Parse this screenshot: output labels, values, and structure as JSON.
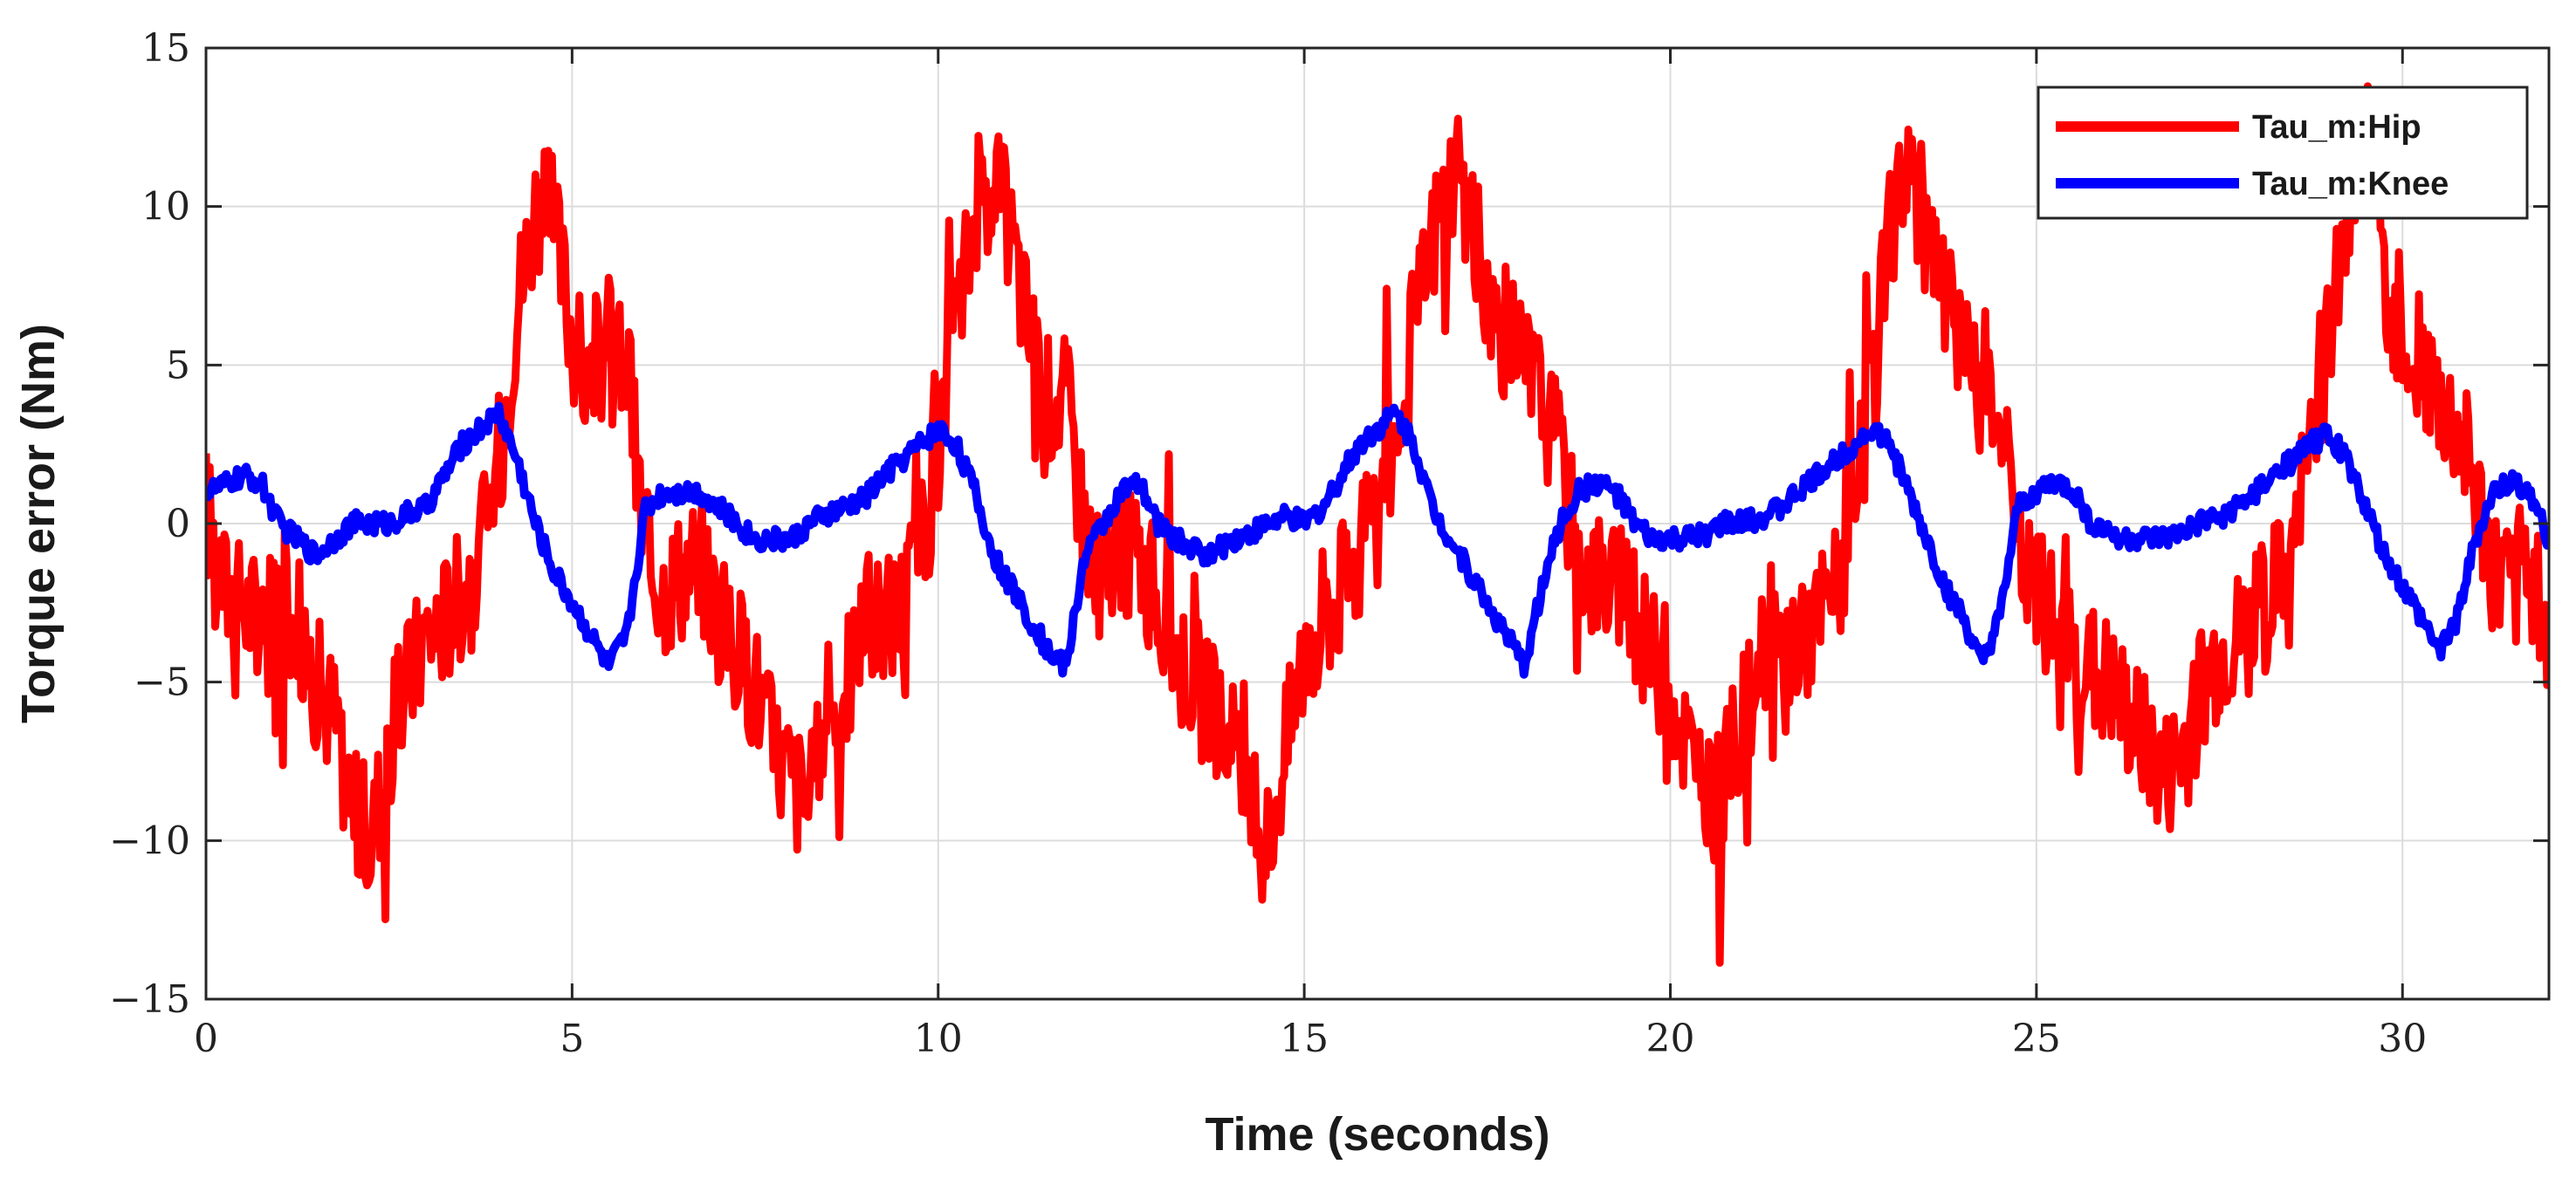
{
  "chart_data": {
    "type": "line",
    "title": "",
    "xlabel": "Time (seconds)",
    "ylabel": "Torque error (Nm)",
    "xlim": [
      0,
      32
    ],
    "ylim": [
      -15,
      15
    ],
    "xticks": [
      0,
      5,
      10,
      15,
      20,
      25,
      30
    ],
    "yticks": [
      -15,
      -10,
      -5,
      0,
      5,
      10,
      15
    ],
    "xtick_labels": [
      "0",
      "5",
      "10",
      "15",
      "20",
      "25",
      "30"
    ],
    "ytick_labels": [
      "−15",
      "−10",
      "−5",
      "0",
      "5",
      "10",
      "15"
    ],
    "grid": true,
    "legend_position": "top-right",
    "series": [
      {
        "name": "Tau_m:Hip",
        "color": "#ff0000",
        "x": [
          0.0,
          0.25,
          0.5,
          0.75,
          1.0,
          1.25,
          1.5,
          1.75,
          2.0,
          2.25,
          2.5,
          2.75,
          3.0,
          3.25,
          3.5,
          3.75,
          4.0,
          4.25,
          4.5,
          4.75,
          5.0,
          5.25,
          5.5,
          5.75,
          6.0,
          6.25,
          6.5,
          6.75,
          7.0,
          7.25,
          7.5,
          7.75,
          8.0,
          8.25,
          8.5,
          8.75,
          9.0,
          9.25,
          9.5,
          9.75,
          10.0,
          10.25,
          10.5,
          10.75,
          11.0,
          11.25,
          11.5,
          11.75,
          12.0,
          12.25,
          12.5,
          12.75,
          13.0,
          13.25,
          13.5,
          13.75,
          14.0,
          14.25,
          14.5,
          14.75,
          15.0,
          15.25,
          15.5,
          15.75,
          16.0,
          16.25,
          16.5,
          16.75,
          17.0,
          17.25,
          17.5,
          17.75,
          18.0,
          18.25,
          18.5,
          18.75,
          19.0,
          19.25,
          19.5,
          19.75,
          20.0,
          20.25,
          20.5,
          20.75,
          21.0,
          21.25,
          21.5,
          21.75,
          22.0,
          22.25,
          22.5,
          22.75,
          23.0,
          23.25,
          23.5,
          23.75,
          24.0,
          24.25,
          24.5,
          24.75,
          25.0,
          25.25,
          25.5,
          25.75,
          26.0,
          26.25,
          26.5,
          26.75,
          27.0,
          27.25,
          27.5,
          27.75,
          28.0,
          28.25,
          28.5,
          28.75,
          29.0,
          29.25,
          29.5,
          29.75,
          30.0,
          30.25,
          30.5,
          30.75,
          31.0,
          31.25,
          31.5,
          31.75,
          32.0
        ],
        "values": [
          0.5,
          -2.0,
          -2.5,
          -3.0,
          -2.0,
          -3.0,
          -5.0,
          -6.0,
          -9.0,
          -10.0,
          -7.0,
          -5.0,
          -3.5,
          -3.0,
          -2.0,
          -1.0,
          2.0,
          7.0,
          10.0,
          9.5,
          6.0,
          4.0,
          6.0,
          5.0,
          -1.0,
          -2.0,
          -1.5,
          -1.0,
          -3.0,
          -4.0,
          -5.0,
          -7.0,
          -8.0,
          -9.0,
          -6.0,
          -5.0,
          -3.0,
          -3.0,
          -2.5,
          -1.0,
          2.0,
          6.0,
          10.0,
          11.0,
          9.0,
          6.0,
          4.0,
          4.0,
          0.0,
          -2.0,
          -1.0,
          -1.0,
          -2.5,
          -4.0,
          -5.0,
          -6.0,
          -7.0,
          -9.0,
          -10.0,
          -7.0,
          -4.0,
          -3.0,
          -2.0,
          -1.0,
          0.0,
          3.0,
          6.0,
          9.0,
          11.0,
          10.0,
          7.0,
          6.0,
          5.0,
          4.0,
          2.0,
          -1.0,
          -1.5,
          -2.0,
          -3.0,
          -4.0,
          -5.0,
          -7.0,
          -9.0,
          -8.0,
          -6.0,
          -4.5,
          -4.0,
          -3.5,
          -3.0,
          -2.0,
          0.0,
          4.0,
          9.0,
          12.0,
          9.0,
          7.0,
          6.0,
          5.0,
          3.0,
          -1.0,
          -2.0,
          -3.0,
          -4.0,
          -4.5,
          -5.0,
          -6.0,
          -7.0,
          -8.0,
          -7.0,
          -5.0,
          -4.0,
          -3.5,
          -3.0,
          -2.0,
          -1.0,
          3.0,
          6.0,
          9.0,
          12.0,
          8.0,
          6.0,
          5.0,
          4.0,
          3.0,
          1.0,
          -1.5,
          -2.0,
          -2.0,
          -3.0
        ],
        "thin": false
      },
      {
        "name": "Tau_m:Knee",
        "color": "#0000ff",
        "x": [
          0.0,
          0.25,
          0.5,
          0.75,
          1.0,
          1.25,
          1.5,
          1.75,
          2.0,
          2.25,
          2.5,
          2.75,
          3.0,
          3.25,
          3.5,
          3.75,
          4.0,
          4.25,
          4.5,
          4.75,
          5.0,
          5.25,
          5.5,
          5.75,
          6.0,
          6.25,
          6.5,
          6.75,
          7.0,
          7.25,
          7.5,
          7.75,
          8.0,
          8.25,
          8.5,
          8.75,
          9.0,
          9.25,
          9.5,
          9.75,
          10.0,
          10.25,
          10.5,
          10.75,
          11.0,
          11.25,
          11.5,
          11.75,
          12.0,
          12.25,
          12.5,
          12.75,
          13.0,
          13.25,
          13.5,
          13.75,
          14.0,
          14.25,
          14.5,
          14.75,
          15.0,
          15.25,
          15.5,
          15.75,
          16.0,
          16.25,
          16.5,
          16.75,
          17.0,
          17.25,
          17.5,
          17.75,
          18.0,
          18.25,
          18.5,
          18.75,
          19.0,
          19.25,
          19.5,
          19.75,
          20.0,
          20.25,
          20.5,
          20.75,
          21.0,
          21.25,
          21.5,
          21.75,
          22.0,
          22.25,
          22.5,
          22.75,
          23.0,
          23.25,
          23.5,
          23.75,
          24.0,
          24.25,
          24.5,
          24.75,
          25.0,
          25.25,
          25.5,
          25.75,
          26.0,
          26.25,
          26.5,
          26.75,
          27.0,
          27.25,
          27.5,
          27.75,
          28.0,
          28.25,
          28.5,
          28.75,
          29.0,
          29.25,
          29.5,
          29.75,
          30.0,
          30.25,
          30.5,
          30.75,
          31.0,
          31.25,
          31.5,
          31.75,
          32.0
        ],
        "values": [
          1.0,
          1.2,
          1.5,
          1.3,
          0.0,
          -0.5,
          -1.0,
          -0.5,
          0.0,
          0.0,
          0.0,
          0.3,
          0.5,
          1.5,
          2.5,
          3.0,
          3.5,
          2.0,
          0.0,
          -1.5,
          -2.5,
          -3.5,
          -4.5,
          -3.5,
          0.5,
          1.0,
          1.0,
          1.0,
          0.5,
          0.0,
          -0.5,
          -0.5,
          -0.5,
          0.0,
          0.3,
          0.5,
          0.8,
          1.5,
          2.0,
          2.5,
          3.0,
          2.5,
          1.0,
          -1.0,
          -2.0,
          -3.0,
          -4.0,
          -4.5,
          -1.0,
          0.0,
          1.0,
          1.2,
          0.0,
          -0.5,
          -0.8,
          -1.0,
          -0.5,
          -0.3,
          0.0,
          0.2,
          0.0,
          0.5,
          1.5,
          2.5,
          3.0,
          3.5,
          2.5,
          0.5,
          -0.5,
          -1.5,
          -2.5,
          -3.5,
          -4.5,
          -2.0,
          0.0,
          1.0,
          1.3,
          1.0,
          0.0,
          -0.5,
          -0.5,
          -0.5,
          -0.3,
          0.0,
          0.0,
          0.2,
          0.5,
          1.0,
          1.5,
          2.0,
          2.5,
          3.0,
          2.5,
          1.0,
          -0.5,
          -2.0,
          -3.0,
          -4.5,
          -3.0,
          0.5,
          1.0,
          1.3,
          1.0,
          0.0,
          -0.3,
          -0.5,
          -0.5,
          -0.5,
          -0.3,
          0.0,
          0.2,
          0.5,
          1.0,
          1.5,
          2.0,
          2.5,
          2.8,
          2.0,
          0.5,
          -1.0,
          -2.0,
          -3.0,
          -4.0,
          -3.0,
          -0.5,
          1.0,
          1.3,
          1.0,
          -0.5
        ],
        "thin": false
      }
    ]
  }
}
